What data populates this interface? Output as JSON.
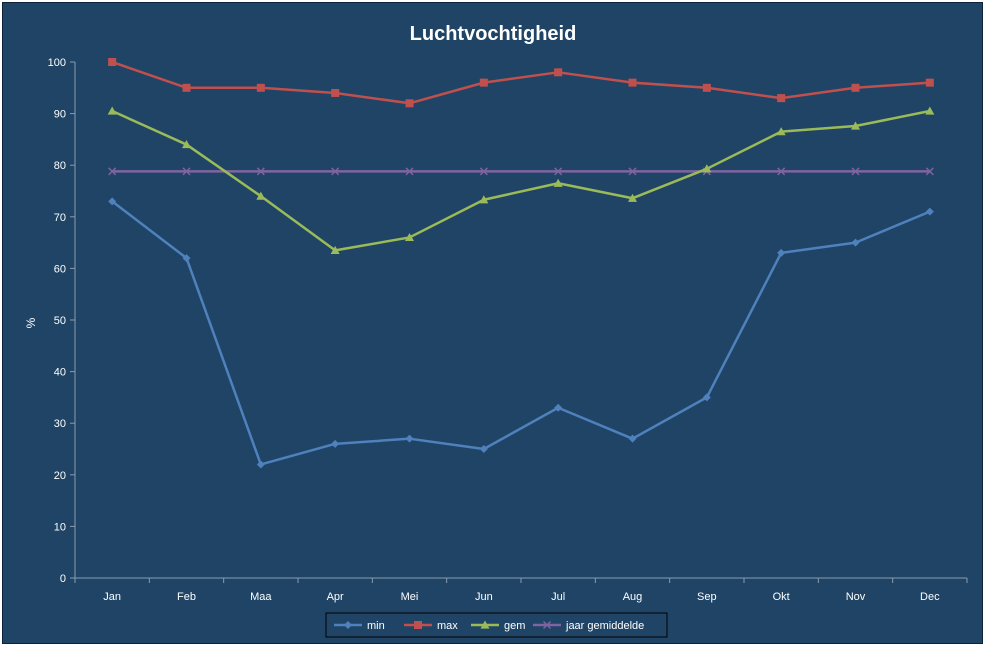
{
  "chart_data": {
    "type": "line",
    "title": "Luchtvochtigheid",
    "xlabel": "",
    "ylabel": "%",
    "categories": [
      "Jan",
      "Feb",
      "Maa",
      "Apr",
      "Mei",
      "Jun",
      "Jul",
      "Aug",
      "Sep",
      "Okt",
      "Nov",
      "Dec"
    ],
    "ylim": [
      0,
      100
    ],
    "yticks": [
      0,
      10,
      20,
      30,
      40,
      50,
      60,
      70,
      80,
      90,
      100
    ],
    "grid": false,
    "legend_position": "bottom",
    "series": [
      {
        "name": "min",
        "color": "#4f81bd",
        "marker": "diamond",
        "values": [
          73,
          62,
          22,
          26,
          27,
          25,
          33,
          27,
          35,
          63,
          65,
          71
        ]
      },
      {
        "name": "max",
        "color": "#c0504d",
        "marker": "square",
        "values": [
          100,
          95,
          95,
          94,
          92,
          96,
          98,
          96,
          95,
          93,
          95,
          96
        ]
      },
      {
        "name": "gem",
        "color": "#9bbb59",
        "marker": "triangle",
        "values": [
          90.5,
          84,
          74,
          63.5,
          66,
          73.3,
          76.5,
          73.6,
          79.3,
          86.5,
          87.6,
          90.5
        ]
      },
      {
        "name": "jaar gemiddelde",
        "color": "#8064a2",
        "marker": "x",
        "values": [
          78.8,
          78.8,
          78.8,
          78.8,
          78.8,
          78.8,
          78.8,
          78.8,
          78.8,
          78.8,
          78.8,
          78.8
        ]
      }
    ]
  }
}
